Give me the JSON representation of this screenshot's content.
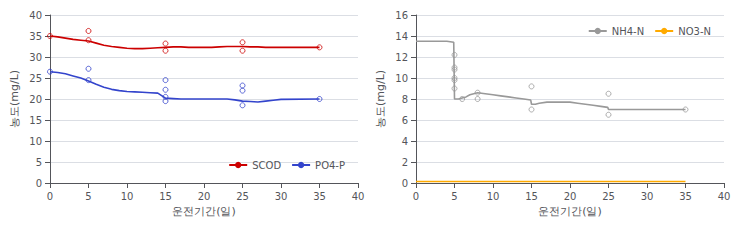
{
  "chart_data": [
    {
      "type": "line",
      "xlabel": "운전기간(일)",
      "ylabel": "농도(mg/L)",
      "xlim": [
        0,
        40
      ],
      "ylim": [
        0,
        40
      ],
      "xticks": [
        0,
        5,
        10,
        15,
        20,
        25,
        30,
        35,
        40
      ],
      "yticks": [
        0,
        5,
        10,
        15,
        20,
        25,
        30,
        35,
        40
      ],
      "grid": true,
      "legend": "lower right",
      "series": [
        {
          "name": "SCOD",
          "color": "#cc0000",
          "x": [
            0,
            1,
            2,
            3,
            4,
            5,
            6,
            7,
            8,
            9,
            10,
            11,
            12,
            13,
            14,
            15,
            16,
            17,
            18,
            19,
            20,
            21,
            22,
            23,
            24,
            25,
            26,
            27,
            28,
            29,
            30,
            31,
            32,
            33,
            34,
            35
          ],
          "values": [
            35.0,
            34.8,
            34.5,
            34.2,
            34.0,
            33.8,
            33.3,
            32.8,
            32.5,
            32.3,
            32.1,
            32.0,
            32.0,
            32.1,
            32.2,
            32.3,
            32.4,
            32.4,
            32.3,
            32.3,
            32.3,
            32.3,
            32.4,
            32.5,
            32.5,
            32.5,
            32.4,
            32.4,
            32.3,
            32.3,
            32.3,
            32.3,
            32.3,
            32.3,
            32.3,
            32.3
          ]
        },
        {
          "type": "scatter",
          "color": "#cc0000",
          "marker": "circle",
          "x": [
            0,
            5,
            5,
            15,
            15,
            25,
            25,
            35
          ],
          "values": [
            35.0,
            34.0,
            36.2,
            31.5,
            33.2,
            31.5,
            33.5,
            32.3
          ]
        },
        {
          "name": "PO4-P",
          "color": "#3344cc",
          "x": [
            0,
            1,
            2,
            3,
            4,
            5,
            6,
            7,
            8,
            9,
            10,
            11,
            12,
            13,
            14,
            15,
            16,
            17,
            18,
            19,
            20,
            21,
            22,
            23,
            24,
            25,
            26,
            27,
            28,
            29,
            30,
            35
          ],
          "values": [
            26.5,
            26.3,
            26.0,
            25.5,
            25.0,
            24.3,
            23.5,
            22.8,
            22.3,
            22.0,
            21.8,
            21.7,
            21.6,
            21.5,
            21.4,
            20.2,
            20.1,
            20.0,
            20.0,
            20.0,
            20.0,
            20.0,
            20.0,
            20.0,
            19.8,
            19.5,
            19.4,
            19.3,
            19.5,
            19.7,
            19.9,
            20.0
          ]
        },
        {
          "type": "scatter",
          "color": "#3344cc",
          "marker": "circle",
          "x": [
            0,
            5,
            5,
            15,
            15,
            15,
            15,
            25,
            25,
            25,
            35
          ],
          "values": [
            26.5,
            27.2,
            24.5,
            24.5,
            22.2,
            20.5,
            19.5,
            23.2,
            22.0,
            18.5,
            20.0
          ]
        }
      ]
    },
    {
      "type": "line",
      "xlabel": "운전기간(일)",
      "ylabel": "농도(mg/L)",
      "xlim": [
        0,
        40
      ],
      "ylim": [
        0,
        16
      ],
      "xticks": [
        0,
        5,
        10,
        15,
        20,
        25,
        30,
        35,
        40
      ],
      "yticks": [
        0,
        2,
        4,
        6,
        8,
        10,
        12,
        14,
        16
      ],
      "grid": true,
      "legend": "upper right",
      "series": [
        {
          "name": "NH4-N",
          "color": "#999999",
          "x": [
            0,
            1,
            2,
            3,
            4,
            4.9,
            5,
            5.5,
            6,
            6.5,
            7,
            7.5,
            8,
            9,
            10,
            11,
            12,
            13,
            14,
            14.9,
            15,
            15.5,
            16,
            17,
            18,
            19,
            20,
            21,
            22,
            23,
            24,
            24.9,
            25,
            25.5,
            26,
            27,
            28,
            29,
            30,
            35
          ],
          "values": [
            13.5,
            13.5,
            13.5,
            13.5,
            13.5,
            13.4,
            8.0,
            8.0,
            8.1,
            8.2,
            8.4,
            8.5,
            8.6,
            8.5,
            8.4,
            8.3,
            8.2,
            8.1,
            8.0,
            7.9,
            7.5,
            7.5,
            7.6,
            7.7,
            7.7,
            7.7,
            7.7,
            7.6,
            7.5,
            7.4,
            7.3,
            7.2,
            7.0,
            7.0,
            7.0,
            7.0,
            7.0,
            7.0,
            7.0,
            7.0
          ]
        },
        {
          "type": "scatter",
          "color": "#999999",
          "marker": "circle",
          "x": [
            5,
            5,
            5,
            5,
            5,
            5,
            6,
            8,
            8,
            15,
            15,
            25,
            25,
            35
          ],
          "values": [
            12.2,
            11.0,
            10.8,
            10.0,
            9.8,
            9.0,
            8.0,
            8.6,
            8.0,
            9.2,
            7.0,
            8.5,
            6.5,
            7.0
          ]
        },
        {
          "name": "NO3-N",
          "color": "#ffaa00",
          "x": [
            0,
            35
          ],
          "values": [
            0.15,
            0.15
          ]
        }
      ]
    }
  ]
}
